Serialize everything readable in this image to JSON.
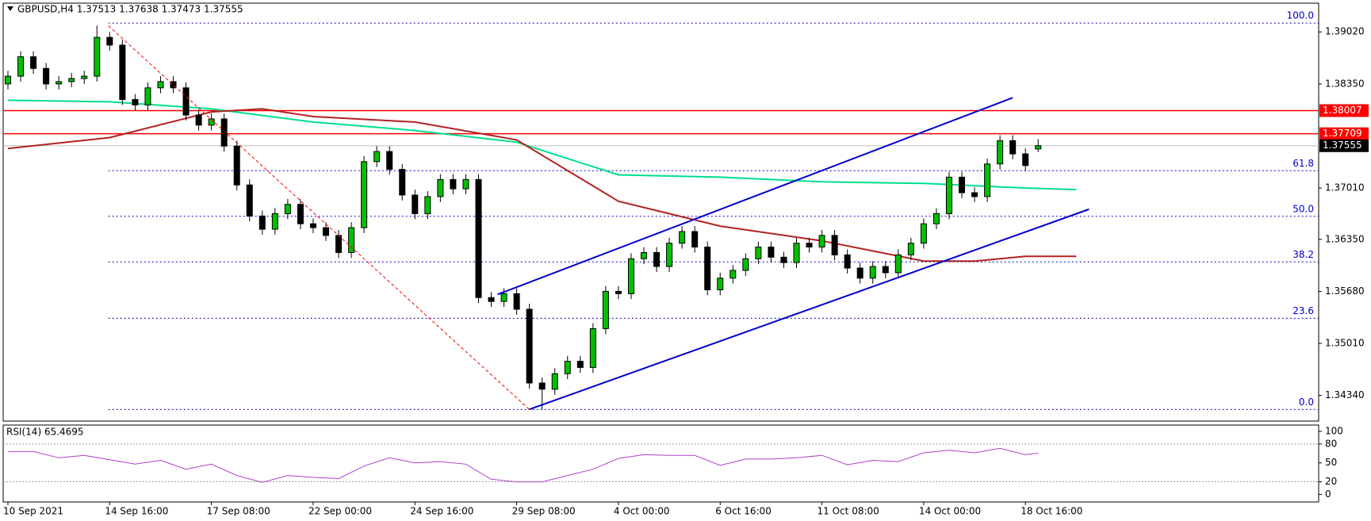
{
  "chart_data": [
    {
      "type": "candlestick",
      "title": "GBPUSD,H4  1.37513 1.37638 1.37473 1.37555",
      "categories": [
        "10 Sep 2021",
        null,
        null,
        null,
        null,
        null,
        null,
        null,
        "14 Sep 16:00",
        null,
        null,
        null,
        null,
        null,
        null,
        null,
        "17 Sep 08:00",
        null,
        null,
        null,
        null,
        null,
        null,
        null,
        "22 Sep 00:00",
        null,
        null,
        null,
        null,
        null,
        null,
        null,
        "24 Sep 16:00",
        null,
        null,
        null,
        null,
        null,
        null,
        null,
        "29 Sep 08:00",
        null,
        null,
        null,
        null,
        null,
        null,
        null,
        "4 Oct 00:00",
        null,
        null,
        null,
        null,
        null,
        null,
        null,
        "6 Oct 16:00",
        null,
        null,
        null,
        null,
        null,
        null,
        null,
        "11 Oct 08:00",
        null,
        null,
        null,
        null,
        null,
        null,
        null,
        "14 Oct 00:00",
        null,
        null,
        null,
        null,
        null,
        null,
        null,
        "18 Oct 16:00",
        null
      ],
      "open": [
        1.3835,
        1.3845,
        1.387,
        1.3855,
        1.3835,
        1.3838,
        1.3842,
        1.3845,
        1.3895,
        1.3885,
        1.3815,
        1.3808,
        1.383,
        1.3838,
        1.383,
        1.3795,
        1.3782,
        1.379,
        1.3755,
        1.3705,
        1.3665,
        1.3648,
        1.3668,
        1.368,
        1.3655,
        1.365,
        1.364,
        1.3618,
        1.365,
        1.3735,
        1.3748,
        1.3725,
        1.3692,
        1.3668,
        1.369,
        1.3712,
        1.37,
        1.3712,
        1.356,
        1.3555,
        1.3565,
        1.3545,
        1.345,
        1.3442,
        1.3462,
        1.3478,
        1.347,
        1.352,
        1.3568,
        1.3565,
        1.361,
        1.3618,
        1.36,
        1.363,
        1.3645,
        1.3625,
        1.357,
        1.3585,
        1.3595,
        1.361,
        1.3625,
        1.3612,
        1.3605,
        1.363,
        1.3625,
        1.364,
        1.3615,
        1.3598,
        1.3585,
        1.36,
        1.3592,
        1.3615,
        1.363,
        1.3655,
        1.3668,
        1.3715,
        1.3695,
        1.369,
        1.3732,
        1.3762,
        1.3745,
        1.37513
      ],
      "high": [
        1.3852,
        1.3877,
        1.3877,
        1.3862,
        1.3845,
        1.3849,
        1.3852,
        1.391,
        1.3902,
        1.3892,
        1.3822,
        1.3837,
        1.3845,
        1.3845,
        1.3837,
        1.3802,
        1.3797,
        1.3797,
        1.3762,
        1.3712,
        1.3672,
        1.3675,
        1.3687,
        1.3687,
        1.3662,
        1.3657,
        1.3647,
        1.3657,
        1.3742,
        1.3755,
        1.3755,
        1.3732,
        1.3699,
        1.3697,
        1.3719,
        1.3719,
        1.3719,
        1.3719,
        1.3567,
        1.3572,
        1.3572,
        1.3552,
        1.3457,
        1.3469,
        1.3485,
        1.3485,
        1.3527,
        1.3575,
        1.3575,
        1.3617,
        1.3625,
        1.3625,
        1.3637,
        1.3652,
        1.3652,
        1.3632,
        1.3592,
        1.3602,
        1.3617,
        1.3632,
        1.3632,
        1.3619,
        1.3637,
        1.3637,
        1.3647,
        1.3647,
        1.3622,
        1.3605,
        1.3607,
        1.3607,
        1.3622,
        1.3637,
        1.3662,
        1.3675,
        1.3722,
        1.3722,
        1.3702,
        1.3739,
        1.3769,
        1.3769,
        1.3752,
        1.37638
      ],
      "low": [
        1.3828,
        1.3838,
        1.3848,
        1.3828,
        1.3828,
        1.3831,
        1.3835,
        1.3838,
        1.3878,
        1.3808,
        1.3801,
        1.3801,
        1.3823,
        1.3823,
        1.3788,
        1.3775,
        1.3775,
        1.3748,
        1.3698,
        1.3658,
        1.3641,
        1.3641,
        1.3661,
        1.3648,
        1.3643,
        1.3633,
        1.3611,
        1.3611,
        1.3643,
        1.3728,
        1.3718,
        1.3685,
        1.3661,
        1.3661,
        1.3683,
        1.3693,
        1.3693,
        1.3553,
        1.3548,
        1.3548,
        1.3538,
        1.3443,
        1.3416,
        1.3435,
        1.3455,
        1.3463,
        1.3463,
        1.3513,
        1.3558,
        1.3558,
        1.3603,
        1.3593,
        1.3593,
        1.3623,
        1.3618,
        1.3563,
        1.3563,
        1.3578,
        1.3588,
        1.3603,
        1.3605,
        1.3598,
        1.3598,
        1.3618,
        1.3618,
        1.3608,
        1.3591,
        1.3578,
        1.3578,
        1.3585,
        1.3585,
        1.3608,
        1.3623,
        1.3648,
        1.3661,
        1.3688,
        1.3683,
        1.3683,
        1.3725,
        1.3738,
        1.3723,
        1.37473
      ],
      "close": [
        1.3845,
        1.387,
        1.3855,
        1.3835,
        1.3838,
        1.3842,
        1.3845,
        1.3895,
        1.3885,
        1.3815,
        1.3808,
        1.383,
        1.3838,
        1.383,
        1.3795,
        1.3782,
        1.379,
        1.3755,
        1.3705,
        1.3665,
        1.3648,
        1.3668,
        1.368,
        1.3655,
        1.365,
        1.364,
        1.3618,
        1.365,
        1.3735,
        1.3748,
        1.3725,
        1.3692,
        1.3668,
        1.369,
        1.3712,
        1.37,
        1.3712,
        1.356,
        1.3555,
        1.3565,
        1.3545,
        1.345,
        1.3442,
        1.3462,
        1.3478,
        1.347,
        1.352,
        1.3568,
        1.3565,
        1.361,
        1.3618,
        1.36,
        1.363,
        1.3645,
        1.3625,
        1.357,
        1.3585,
        1.3595,
        1.361,
        1.3625,
        1.3612,
        1.3605,
        1.363,
        1.3625,
        1.364,
        1.3615,
        1.3598,
        1.3585,
        1.36,
        1.3592,
        1.3615,
        1.363,
        1.3655,
        1.3668,
        1.3715,
        1.3695,
        1.369,
        1.3732,
        1.3762,
        1.3745,
        1.373,
        1.37555
      ],
      "up_color": "#00c000",
      "down_color": "#000000",
      "ylim": [
        1.3401,
        1.3939
      ],
      "yticks": [
        {
          "value": 1.3902,
          "label": "1.39020"
        },
        {
          "value": 1.3835,
          "label": "1.38350"
        },
        {
          "value": 1.3701,
          "label": "1.37010"
        },
        {
          "value": 1.3635,
          "label": "1.36350"
        },
        {
          "value": 1.3568,
          "label": "1.35680"
        },
        {
          "value": 1.3501,
          "label": "1.35010"
        },
        {
          "value": 1.3434,
          "label": "1.34340"
        }
      ],
      "overlays": [
        {
          "color": "#00e08a",
          "x": [
            0,
            8,
            16,
            24,
            32,
            40,
            48,
            56,
            64,
            72,
            80,
            84
          ],
          "values": [
            1.3814,
            1.3812,
            1.3803,
            1.3786,
            1.3775,
            1.376,
            1.3718,
            1.3715,
            1.3709,
            1.3707,
            1.3701,
            1.3699
          ]
        },
        {
          "color": "#b22222",
          "x": [
            0,
            8,
            16,
            20,
            24,
            32,
            40,
            48,
            56,
            64,
            72,
            76,
            80,
            84
          ],
          "values": [
            1.3752,
            1.3766,
            1.3799,
            1.3803,
            1.3793,
            1.3786,
            1.3763,
            1.3684,
            1.3652,
            1.3633,
            1.3607,
            1.3607,
            1.3613,
            1.3613
          ]
        }
      ],
      "levels": [
        {
          "value": 1.38007,
          "color": "#ff0000"
        },
        {
          "value": 1.37709,
          "color": "#ff0000"
        }
      ],
      "current": {
        "value": 1.37555,
        "color": "#000000"
      },
      "fib": {
        "color": "#0000cd",
        "start": 7.9,
        "levels": [
          {
            "value": 1.39133,
            "label": "100.0"
          },
          {
            "value": 1.37233,
            "label": "61.8"
          },
          {
            "value": 1.36646,
            "label": "50.0"
          },
          {
            "value": 1.36059,
            "label": "38.2"
          },
          {
            "value": 1.35333,
            "label": "23.6"
          },
          {
            "value": 1.34159,
            "label": "0.0"
          }
        ]
      },
      "trendlines": [
        {
          "color": "#ff0000",
          "dashed": true,
          "x": [
            7.9,
            41
          ],
          "values": [
            1.391,
            1.34159
          ]
        },
        {
          "color": "#0000cd",
          "dashed": false,
          "x": [
            38.5,
            79
          ],
          "values": [
            1.35641,
            1.38173
          ]
        },
        {
          "color": "#0000cd",
          "dashed": false,
          "x": [
            41,
            85
          ],
          "values": [
            1.34161,
            1.36737
          ]
        }
      ]
    },
    {
      "type": "line",
      "title": "RSI(14) 65.4695",
      "color": "#b040c8",
      "x": [
        0,
        2,
        4,
        6,
        8,
        10,
        12,
        14,
        16,
        18,
        20,
        22,
        24,
        26,
        28,
        30,
        32,
        34,
        36,
        38,
        40,
        42,
        44,
        46,
        48,
        50,
        52,
        54,
        56,
        58,
        60,
        62,
        64,
        66,
        68,
        70,
        72,
        74,
        76,
        78,
        80,
        81
      ],
      "values": [
        68,
        68,
        58,
        62,
        55,
        48,
        54,
        40,
        48,
        30,
        19,
        30,
        27,
        25,
        45,
        58,
        50,
        52,
        48,
        24,
        20,
        20,
        30,
        40,
        57,
        63,
        62,
        62,
        46,
        56,
        56,
        58,
        62,
        47,
        54,
        52,
        66,
        70,
        66,
        73,
        63,
        65.4695
      ],
      "ylim": [
        -12,
        110
      ],
      "yticks": [
        100,
        80,
        50,
        20,
        0
      ],
      "levels": [
        80,
        20
      ]
    }
  ]
}
